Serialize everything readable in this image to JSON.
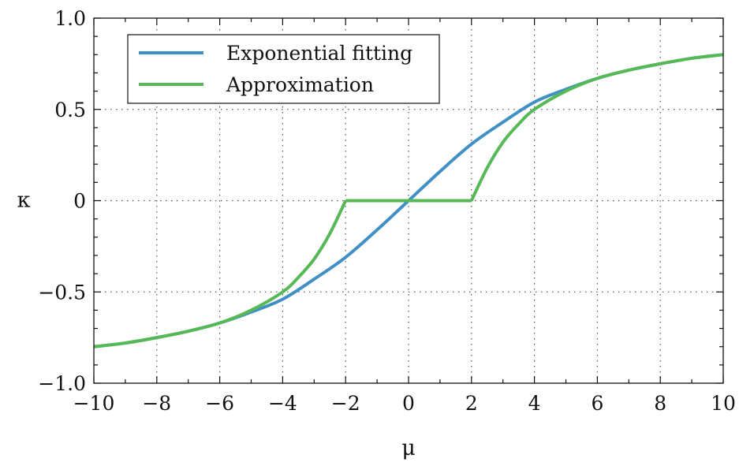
{
  "chart_data": {
    "type": "line",
    "xlabel": "μ",
    "ylabel": "κ",
    "xlim": [
      -10,
      10
    ],
    "ylim": [
      -1.0,
      1.0
    ],
    "xticks": [
      -10,
      -8,
      -6,
      -4,
      -2,
      0,
      2,
      4,
      6,
      8,
      10
    ],
    "xtick_labels": [
      "−10",
      "−8",
      "−6",
      "−4",
      "−2",
      "0",
      "2",
      "4",
      "6",
      "8",
      "10"
    ],
    "yticks": [
      -1.0,
      -0.5,
      0,
      0.5,
      1.0
    ],
    "ytick_labels": [
      "−1.0",
      "−0.5",
      "0",
      "0.5",
      "1.0"
    ],
    "grid": true,
    "legend_position": "top-left",
    "series": [
      {
        "name": "Exponential fitting",
        "color": "#4190c5",
        "x": [
          -10,
          -9,
          -8,
          -7,
          -6,
          -5,
          -4,
          -3,
          -2,
          -1,
          0,
          1,
          2,
          3,
          4,
          5,
          6,
          7,
          8,
          9,
          10
        ],
        "y": [
          -0.8,
          -0.78,
          -0.75,
          -0.715,
          -0.67,
          -0.61,
          -0.54,
          -0.43,
          -0.31,
          -0.16,
          0,
          0.16,
          0.31,
          0.43,
          0.54,
          0.61,
          0.67,
          0.715,
          0.75,
          0.78,
          0.8
        ]
      },
      {
        "name": "Approximation",
        "color": "#56b956",
        "x": [
          -10,
          -9,
          -8,
          -7,
          -6,
          -5,
          -4,
          -3.5,
          -3,
          -2.5,
          -2,
          -1,
          0,
          1,
          2,
          2.5,
          3,
          3.5,
          4,
          5,
          6,
          7,
          8,
          9,
          10
        ],
        "y": [
          -0.8,
          -0.78,
          -0.75,
          -0.715,
          -0.67,
          -0.6,
          -0.5,
          -0.42,
          -0.32,
          -0.18,
          0,
          0,
          0,
          0,
          0,
          0.18,
          0.32,
          0.42,
          0.5,
          0.6,
          0.67,
          0.715,
          0.75,
          0.78,
          0.8
        ]
      }
    ]
  }
}
